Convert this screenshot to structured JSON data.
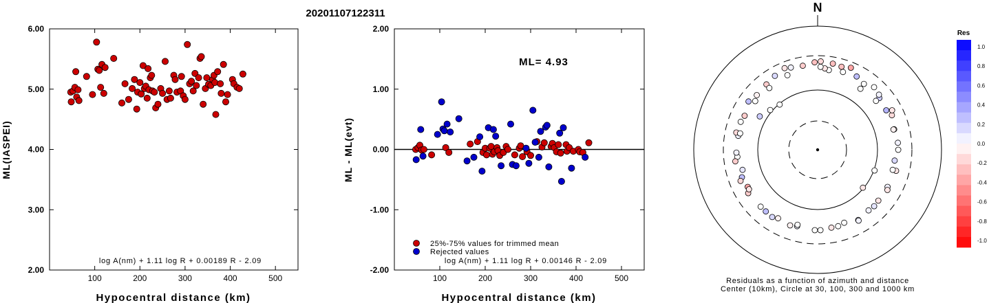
{
  "title": "20201107122311",
  "colors": {
    "red": "#cc0000",
    "blue": "#0000cc"
  },
  "chart_data": [
    {
      "type": "scatter",
      "xlabel": "Hypocentral distance (km)",
      "ylabel": "ML(IASPEI)",
      "xlim": [
        0,
        550
      ],
      "ylim": [
        2.0,
        6.0
      ],
      "x_ticks": [
        "100",
        "200",
        "300",
        "400",
        "500"
      ],
      "y_ticks": [
        "2.00",
        "3.00",
        "4.00",
        "5.00",
        "6.00"
      ],
      "formula": "log A(nm) + 1.11 log R + 0.00189 R - 2.09",
      "series": [
        {
          "color": "red",
          "points": [
            [
              47,
              4.95
            ],
            [
              48,
              4.79
            ],
            [
              52,
              4.97
            ],
            [
              56,
              5.03
            ],
            [
              58,
              5.29
            ],
            [
              60,
              4.87
            ],
            [
              63,
              4.99
            ],
            [
              65,
              4.81
            ],
            [
              82,
              5.21
            ],
            [
              95,
              4.91
            ],
            [
              104,
              5.78
            ],
            [
              107,
              5.33
            ],
            [
              110,
              5.31
            ],
            [
              113,
              5.03
            ],
            [
              116,
              5.41
            ],
            [
              120,
              4.93
            ],
            [
              123,
              5.36
            ],
            [
              142,
              5.51
            ],
            [
              160,
              4.77
            ],
            [
              167,
              5.09
            ],
            [
              175,
              4.83
            ],
            [
              183,
              5.01
            ],
            [
              188,
              5.16
            ],
            [
              193,
              4.67
            ],
            [
              195,
              4.95
            ],
            [
              200,
              5.11
            ],
            [
              203,
              4.92
            ],
            [
              207,
              5.39
            ],
            [
              210,
              5.01
            ],
            [
              213,
              5.05
            ],
            [
              216,
              4.85
            ],
            [
              218,
              5.34
            ],
            [
              220,
              4.99
            ],
            [
              223,
              5.19
            ],
            [
              226,
              5.23
            ],
            [
              228,
              4.97
            ],
            [
              232,
              4.95
            ],
            [
              235,
              4.69
            ],
            [
              240,
              4.75
            ],
            [
              246,
              5.01
            ],
            [
              250,
              4.93
            ],
            [
              256,
              5.46
            ],
            [
              260,
              4.83
            ],
            [
              265,
              4.97
            ],
            [
              268,
              4.85
            ],
            [
              275,
              5.23
            ],
            [
              278,
              5.16
            ],
            [
              282,
              4.95
            ],
            [
              290,
              4.97
            ],
            [
              292,
              5.21
            ],
            [
              296,
              4.89
            ],
            [
              300,
              4.83
            ],
            [
              305,
              5.74
            ],
            [
              310,
              5.09
            ],
            [
              314,
              5.13
            ],
            [
              318,
              4.97
            ],
            [
              322,
              5.26
            ],
            [
              325,
              5.06
            ],
            [
              330,
              5.19
            ],
            [
              333,
              5.51
            ],
            [
              336,
              5.54
            ],
            [
              340,
              4.75
            ],
            [
              345,
              5.01
            ],
            [
              348,
              5.19
            ],
            [
              352,
              5.08
            ],
            [
              357,
              5.06
            ],
            [
              361,
              5.16
            ],
            [
              364,
              5.23
            ],
            [
              366,
              5.11
            ],
            [
              368,
              4.58
            ],
            [
              372,
              5.29
            ],
            [
              378,
              5.09
            ],
            [
              380,
              4.93
            ],
            [
              385,
              5.41
            ],
            [
              390,
              4.79
            ],
            [
              394,
              4.91
            ],
            [
              405,
              5.16
            ],
            [
              408,
              5.09
            ],
            [
              415,
              5.03
            ],
            [
              420,
              5.01
            ],
            [
              428,
              5.25
            ]
          ]
        }
      ]
    },
    {
      "type": "scatter",
      "xlabel": "Hypocentral distance (km)",
      "ylabel": "ML - ML(evt)",
      "xlim": [
        0,
        550
      ],
      "ylim": [
        -2.0,
        2.0
      ],
      "x_ticks": [
        "100",
        "200",
        "300",
        "400",
        "500"
      ],
      "y_ticks": [
        "-2.00",
        "-1.00",
        "0.00",
        "1.00",
        "2.00"
      ],
      "annotation": "ML= 4.93",
      "formula": "log A(nm) + 1.11 log R + 0.00146 R - 2.09",
      "legend": [
        "25%-75% values for trimmed mean",
        "Rejected values"
      ],
      "series": [
        {
          "name": "25%-75% values for trimmed mean",
          "color": "red",
          "points": [
            [
              47,
              0.0
            ],
            [
              52,
              0.03
            ],
            [
              56,
              0.07
            ],
            [
              60,
              -0.01
            ],
            [
              65,
              0.0
            ],
            [
              82,
              -0.09
            ],
            [
              113,
              0.03
            ],
            [
              120,
              -0.05
            ],
            [
              167,
              0.09
            ],
            [
              183,
              0.13
            ],
            [
              195,
              -0.05
            ],
            [
              200,
              0.02
            ],
            [
              203,
              -0.09
            ],
            [
              210,
              0.02
            ],
            [
              213,
              0.05
            ],
            [
              216,
              -0.08
            ],
            [
              220,
              -0.04
            ],
            [
              226,
              0.03
            ],
            [
              228,
              -0.02
            ],
            [
              232,
              -0.1
            ],
            [
              240,
              -0.05
            ],
            [
              246,
              0.05
            ],
            [
              250,
              0.0
            ],
            [
              265,
              -0.09
            ],
            [
              275,
              0.02
            ],
            [
              278,
              0.06
            ],
            [
              282,
              -0.12
            ],
            [
              292,
              -0.04
            ],
            [
              300,
              -0.1
            ],
            [
              314,
              0.13
            ],
            [
              325,
              0.04
            ],
            [
              330,
              0.11
            ],
            [
              345,
              0.05
            ],
            [
              348,
              0.1
            ],
            [
              352,
              0.03
            ],
            [
              357,
              -0.04
            ],
            [
              361,
              0.08
            ],
            [
              366,
              -0.06
            ],
            [
              378,
              0.08
            ],
            [
              380,
              -0.03
            ],
            [
              385,
              0.03
            ],
            [
              394,
              -0.03
            ],
            [
              405,
              0.0
            ],
            [
              408,
              -0.04
            ],
            [
              415,
              -0.05
            ],
            [
              428,
              0.11
            ]
          ]
        },
        {
          "name": "Rejected values",
          "color": "blue",
          "points": [
            [
              48,
              -0.17
            ],
            [
              58,
              0.33
            ],
            [
              63,
              -0.11
            ],
            [
              95,
              0.25
            ],
            [
              104,
              0.79
            ],
            [
              107,
              0.34
            ],
            [
              110,
              0.31
            ],
            [
              116,
              0.42
            ],
            [
              123,
              0.29
            ],
            [
              142,
              0.51
            ],
            [
              160,
              -0.19
            ],
            [
              175,
              -0.13
            ],
            [
              188,
              0.21
            ],
            [
              193,
              -0.36
            ],
            [
              207,
              0.36
            ],
            [
              218,
              0.33
            ],
            [
              223,
              0.22
            ],
            [
              235,
              -0.27
            ],
            [
              256,
              0.42
            ],
            [
              260,
              -0.25
            ],
            [
              268,
              -0.27
            ],
            [
              290,
              0.02
            ],
            [
              296,
              -0.23
            ],
            [
              305,
              0.65
            ],
            [
              310,
              0.12
            ],
            [
              318,
              -0.13
            ],
            [
              322,
              0.3
            ],
            [
              333,
              0.37
            ],
            [
              336,
              0.4
            ],
            [
              340,
              -0.29
            ],
            [
              364,
              0.27
            ],
            [
              368,
              -0.53
            ],
            [
              372,
              0.36
            ],
            [
              390,
              -0.31
            ],
            [
              420,
              -0.13
            ]
          ]
        }
      ]
    },
    {
      "type": "scatter",
      "subtype": "polar",
      "north_label": "N",
      "caption_line1": "Residuals as a function of azimuth and distance",
      "caption_line2": "Center (10km), Circle at 30, 100, 300 and 1000 km",
      "colorbar_title": "Res",
      "colorbar_ticks": [
        "1.0",
        "0.8",
        "0.6",
        "0.4",
        "0.2",
        "0.0",
        "-0.2",
        "-0.4",
        "-0.6",
        "-0.8",
        "-1.0"
      ],
      "points": [
        [
          16,
          250,
          -0.25
        ],
        [
          22,
          270,
          -0.35
        ],
        [
          10,
          260,
          -0.25
        ],
        [
          2,
          270,
          -0.15
        ],
        [
          -2,
          260,
          -0.25
        ],
        [
          -10,
          240,
          -0.2
        ],
        [
          -18,
          250,
          0.05
        ],
        [
          -22,
          265,
          -0.1
        ],
        [
          -30,
          240,
          0.15
        ],
        [
          -38,
          220,
          -0.2
        ],
        [
          -48,
          210,
          -0.05
        ],
        [
          -55,
          230,
          0.25
        ],
        [
          -70,
          210,
          0.0
        ],
        [
          -80,
          200,
          0.05
        ],
        [
          -78,
          220,
          -0.15
        ],
        [
          -95,
          200,
          0.0
        ],
        [
          -98,
          220,
          -0.2
        ],
        [
          -110,
          200,
          0.25
        ],
        [
          -112,
          220,
          -0.15
        ],
        [
          -118,
          190,
          -0.35
        ],
        [
          -122,
          210,
          -0.2
        ],
        [
          -140,
          200,
          0.25
        ],
        [
          -146,
          205,
          0.15
        ],
        [
          -160,
          200,
          -0.05
        ],
        [
          -165,
          190,
          0.05
        ],
        [
          -178,
          200,
          0.0
        ],
        [
          -190,
          190,
          -0.1
        ],
        [
          -200,
          180,
          0.0
        ],
        [
          -210,
          205,
          0.1
        ],
        [
          -220,
          190,
          0.05
        ],
        [
          -230,
          190,
          -0.1
        ],
        [
          -242,
          190,
          0.05
        ],
        [
          -255,
          205,
          -0.1
        ],
        [
          -262,
          180,
          0.15
        ],
        [
          -275,
          200,
          0.05
        ],
        [
          -285,
          190,
          0.0
        ],
        [
          -295,
          210,
          -0.15
        ],
        [
          -298,
          230,
          -0.1
        ],
        [
          -310,
          200,
          0.2
        ],
        [
          -312,
          215,
          0.05
        ],
        [
          -318,
          230,
          0.0
        ],
        [
          -325,
          200,
          0.0
        ],
        [
          -332,
          220,
          0.25
        ],
        [
          -342,
          210,
          0.0
        ],
        [
          -352,
          200,
          0.0
        ],
        [
          -355,
          210,
          -0.1
        ],
        [
          -358,
          220,
          0.0
        ],
        [
          35,
          160,
          0.0
        ],
        [
          50,
          170,
          0.0
        ],
        [
          60,
          190,
          0.3
        ],
        [
          75,
          185,
          -0.05
        ],
        [
          90,
          200,
          0.0
        ],
        [
          105,
          180,
          0.0
        ],
        [
          120,
          200,
          -0.1
        ],
        [
          135,
          195,
          0.1
        ],
        [
          150,
          210,
          0.05
        ],
        [
          165,
          190,
          0.0
        ],
        [
          178,
          200,
          0.0
        ],
        [
          195,
          180,
          0.0
        ],
        [
          210,
          190,
          -0.05
        ],
        [
          225,
          200,
          0.0
        ],
        [
          240,
          190,
          -0.1
        ],
        [
          255,
          180,
          0.1
        ],
        [
          268,
          205,
          0.05
        ],
        [
          282,
          190,
          0.0
        ],
        [
          295,
          200,
          -0.2
        ],
        [
          308,
          190,
          0.0
        ],
        [
          322,
          185,
          0.0
        ],
        [
          338,
          200,
          0.0
        ],
        [
          -50,
          100,
          0.0
        ],
        [
          -40,
          90,
          0.0
        ],
        [
          110,
          95,
          0.0
        ],
        [
          130,
          90,
          -0.1
        ],
        [
          -60,
          120,
          0.2
        ]
      ]
    }
  ]
}
